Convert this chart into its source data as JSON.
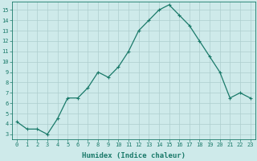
{
  "x": [
    0,
    1,
    2,
    3,
    4,
    5,
    6,
    7,
    8,
    9,
    10,
    11,
    12,
    13,
    14,
    15,
    16,
    17,
    18,
    19,
    20,
    21,
    22,
    23
  ],
  "y": [
    4.2,
    3.5,
    3.5,
    3.0,
    4.5,
    6.5,
    6.5,
    7.5,
    9.0,
    8.5,
    9.5,
    11.0,
    13.0,
    14.0,
    15.0,
    15.5,
    14.5,
    13.5,
    12.0,
    10.5,
    9.0,
    6.5,
    7.0,
    6.5
  ],
  "line_color": "#1a7a6a",
  "marker": "+",
  "marker_size": 3,
  "xlabel": "Humidex (Indice chaleur)",
  "xlim": [
    -0.5,
    23.5
  ],
  "ylim": [
    2.5,
    15.8
  ],
  "xtick_labels": [
    "0",
    "1",
    "2",
    "3",
    "4",
    "5",
    "6",
    "7",
    "8",
    "9",
    "10",
    "11",
    "12",
    "13",
    "14",
    "15",
    "16",
    "17",
    "18",
    "19",
    "20",
    "21",
    "22",
    "23"
  ],
  "ytick_values": [
    3,
    4,
    5,
    6,
    7,
    8,
    9,
    10,
    11,
    12,
    13,
    14,
    15
  ],
  "bg_color": "#ceeaea",
  "grid_color": "#aecece",
  "font_color": "#1a7a6a",
  "tick_fontsize": 5.0,
  "xlabel_fontsize": 6.5,
  "linewidth": 0.9,
  "marker_edge_width": 0.8
}
